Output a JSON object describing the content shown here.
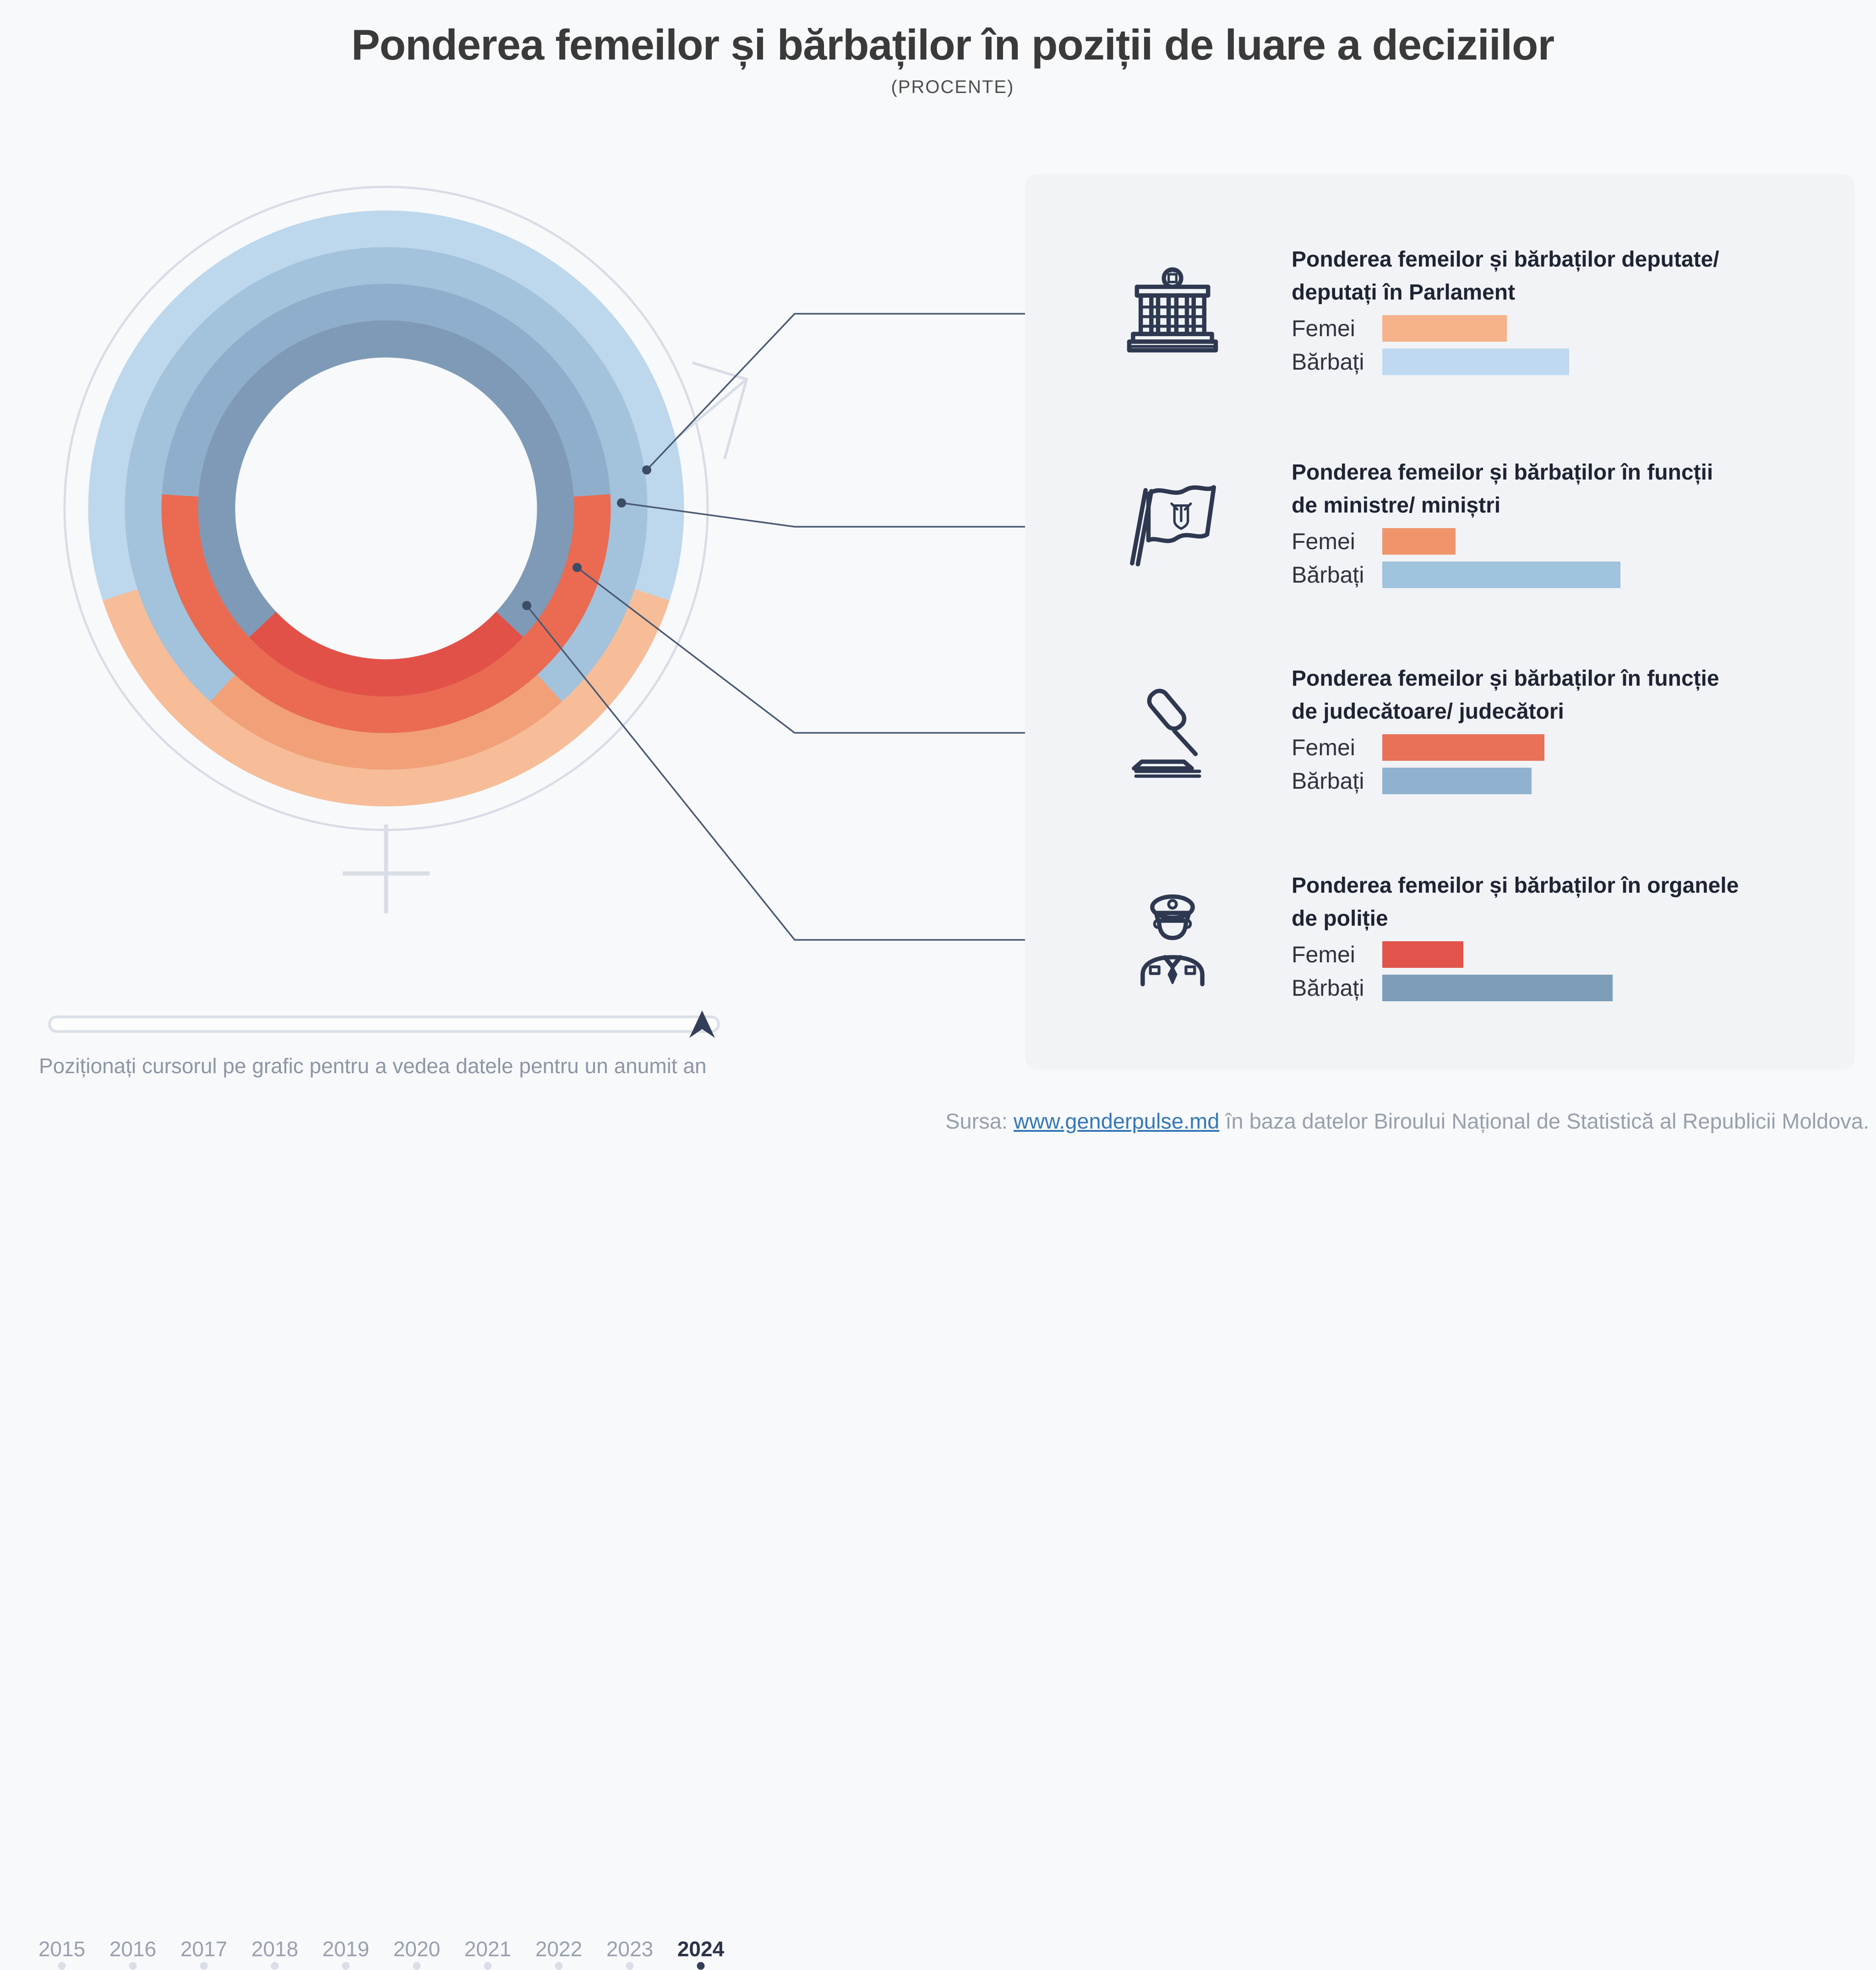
{
  "header": {
    "title": "Ponderea femeilor și bărbaților în poziții de luare a deciziilor",
    "subtitle": "(PROCENTE)"
  },
  "chart_data": {
    "type": "donut-rings",
    "unit": "percent",
    "rings_order": "outer-to-inner",
    "selected_year": "2024",
    "legend": [
      "Femei",
      "Bărbați"
    ],
    "series": [
      {
        "name": "Deputate/ deputați în Parlament",
        "femei": 40.0,
        "barbati": 60.0,
        "ring_femei_color": "#F7BD98",
        "ring_barbati_color": "#BDD7EC",
        "bar_femei_color": "#F5B28B",
        "bar_barbati_color": "#BED9F0"
      },
      {
        "name": "Funcții de ministre/ miniștri",
        "femei": 23.5,
        "barbati": 76.5,
        "ring_femei_color": "#F2A078",
        "ring_barbati_color": "#A3C2DC",
        "bar_femei_color": "#F0946C",
        "bar_barbati_color": "#A0C3DE"
      },
      {
        "name": "Funcție de judecătoare/ judecători",
        "femei": 52.0,
        "barbati": 48.0,
        "ring_femei_color": "#EA6B51",
        "ring_barbati_color": "#8FAECB",
        "bar_femei_color": "#E87158",
        "bar_barbati_color": "#90B2CE"
      },
      {
        "name": "Organele de poliție",
        "femei": 26.0,
        "barbati": 74.0,
        "ring_femei_color": "#E25147",
        "ring_barbati_color": "#7E9AB6",
        "bar_femei_color": "#E0544B",
        "bar_barbati_color": "#7D9DB9"
      }
    ]
  },
  "timeline": {
    "years": [
      "2015",
      "2016",
      "2017",
      "2018",
      "2019",
      "2020",
      "2021",
      "2022",
      "2023",
      "2024"
    ],
    "selected": "2024",
    "hint": "Poziționați cursorul pe grafic pentru a vedea datele pentru un anumit an"
  },
  "panel": {
    "rows": [
      {
        "title": "Ponderea femeilor și bărbaților deputate/\ndeputați în Parlament",
        "femei_label": "Femei",
        "barbati_label": "Bărbați",
        "femei_value": "40,0%",
        "barbati_value": "60,0%",
        "icon": "parliament-icon"
      },
      {
        "title": "Ponderea femeilor și bărbaților în funcții\nde ministre/ miniștri",
        "femei_label": "Femei",
        "barbati_label": "Bărbați",
        "femei_value": "23,5%",
        "barbati_value": "76,5%",
        "icon": "moldova-flag-icon"
      },
      {
        "title": "Ponderea femeilor și bărbaților în funcție\nde judecătoare/ judecători",
        "femei_label": "Femei",
        "barbati_label": "Bărbați",
        "femei_value": "52,0%",
        "barbati_value": "48,0%",
        "icon": "gavel-icon"
      },
      {
        "title": "Ponderea femeilor și bărbaților în organele\nde poliție",
        "femei_label": "Femei",
        "barbati_label": "Bărbați",
        "femei_value": "26,0%",
        "barbati_value": "74,0%",
        "icon": "police-officer-icon"
      }
    ]
  },
  "footer": {
    "prefix": "Sursa: ",
    "link": "www.genderpulse.md",
    "suffix": " în baza datelor Biroului Național de Statistică al Republicii Moldova."
  },
  "colors": {
    "background": "#F8F9FB",
    "panel_background": "#F1F3F6",
    "gender_symbol": "#D8DDE6",
    "leader_line": "#4A5A73",
    "leader_dot": "#3D4C66",
    "accent_dark": "#333F58",
    "year_inactive": "#98A1AE",
    "year_active": "#2B3347",
    "link_blue": "#3478B6"
  }
}
